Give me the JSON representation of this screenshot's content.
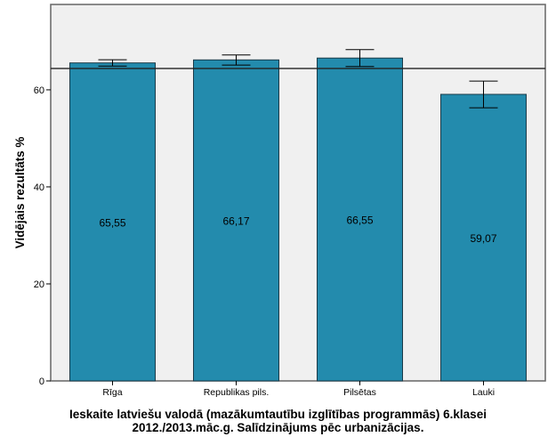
{
  "chart_data": {
    "type": "bar",
    "title": "",
    "categories": [
      "Rīga",
      "Republikas pils.",
      "Pilsētas",
      "Lauki"
    ],
    "values": [
      65.55,
      66.17,
      66.55,
      59.07
    ],
    "value_labels": [
      "65,55",
      "66,17",
      "66,55",
      "59,07"
    ],
    "error_bars": [
      [
        64.9,
        66.2
      ],
      [
        65.1,
        67.2
      ],
      [
        64.8,
        68.3
      ],
      [
        56.3,
        61.8
      ]
    ],
    "reference_line": 64.4,
    "xlabel": "",
    "ylabel": "Vidējais rezultāts %",
    "ylim": [
      0,
      77.6
    ],
    "yticks": [
      0,
      20,
      40,
      60
    ],
    "grid": false,
    "bar_color": "#238bad",
    "background_color": "#f0f0f0"
  },
  "caption": {
    "line1": "Ieskaite latviešu valodā (mazākumtautību izglītības programmās) 6.klasei",
    "line2": "2012./2013.māc.g. Salīdzinājums pēc urbanizācijas."
  }
}
